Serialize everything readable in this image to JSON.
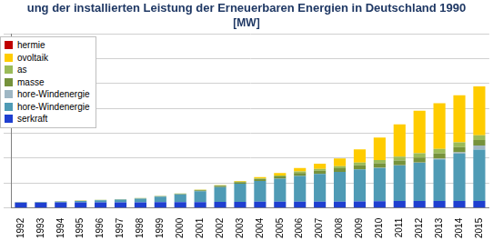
{
  "chart_data": {
    "type": "bar",
    "title": "ung der installierten Leistung der Erneuerbaren Energien in Deutschland 1990",
    "subtitle": "[MW]",
    "stacked": true,
    "grid": true,
    "legend": "upper left",
    "tick_labels": "x",
    "ylim": [
      0,
      140000
    ],
    "yticks": [
      0,
      20000,
      40000,
      60000,
      80000,
      100000,
      120000,
      140000
    ],
    "categories": [
      "1992",
      "1993",
      "1994",
      "1995",
      "1996",
      "1997",
      "1998",
      "1999",
      "2000",
      "2001",
      "2002",
      "2003",
      "2004",
      "2005",
      "2006",
      "2007",
      "2008",
      "2009",
      "2010",
      "2011",
      "2012",
      "2013",
      "2014",
      "2015"
    ],
    "series": [
      {
        "name": "hermie",
        "color": "#c00000",
        "values": [
          0,
          0,
          0,
          0,
          0,
          0,
          0,
          0,
          0,
          0,
          0,
          0,
          0,
          0,
          0,
          3,
          3,
          8,
          8,
          8,
          19,
          31,
          24,
          33
        ]
      },
      {
        "name": "ovoltaik",
        "color": "#ffcc00",
        "values": [
          3,
          5,
          6,
          8,
          11,
          18,
          23,
          32,
          114,
          176,
          296,
          435,
          1105,
          2056,
          2899,
          4170,
          6120,
          10566,
          18006,
          25916,
          34077,
          36710,
          37900,
          39224
        ]
      },
      {
        "name": "as",
        "color": "#9bbb59",
        "values": [
          100,
          110,
          120,
          130,
          150,
          170,
          200,
          220,
          250,
          300,
          350,
          400,
          600,
          800,
          1200,
          1400,
          1600,
          2200,
          2700,
          3100,
          3400,
          3600,
          3700,
          3800
        ]
      },
      {
        "name": "masse",
        "color": "#76923c",
        "values": [
          100,
          120,
          150,
          180,
          200,
          230,
          280,
          330,
          500,
          700,
          1000,
          1300,
          1400,
          1700,
          2300,
          2600,
          3000,
          3300,
          3600,
          3800,
          4000,
          4200,
          4300,
          4400
        ]
      },
      {
        "name": "hore-Windenergie",
        "color": "#9fb7c4",
        "values": [
          0,
          0,
          0,
          0,
          0,
          0,
          0,
          0,
          0,
          0,
          0,
          0,
          0,
          0,
          0,
          0,
          0,
          35,
          80,
          190,
          270,
          500,
          990,
          3280
        ]
      },
      {
        "name": "hore-Windenergie",
        "color": "#4f9bb5",
        "values": [
          180,
          330,
          620,
          1120,
          1550,
          2080,
          2880,
          4440,
          6100,
          8750,
          11980,
          14600,
          16600,
          18400,
          20600,
          22200,
          23800,
          25700,
          26800,
          28500,
          30700,
          33500,
          38100,
          41300
        ]
      },
      {
        "name": "serkraft",
        "color": "#1f3fd0",
        "values": [
          4400,
          4400,
          4500,
          4500,
          4600,
          4600,
          4600,
          4700,
          4800,
          4800,
          4900,
          4900,
          5200,
          5200,
          5200,
          5200,
          5200,
          5300,
          5400,
          5600,
          5600,
          5600,
          5600,
          5600
        ]
      }
    ]
  }
}
